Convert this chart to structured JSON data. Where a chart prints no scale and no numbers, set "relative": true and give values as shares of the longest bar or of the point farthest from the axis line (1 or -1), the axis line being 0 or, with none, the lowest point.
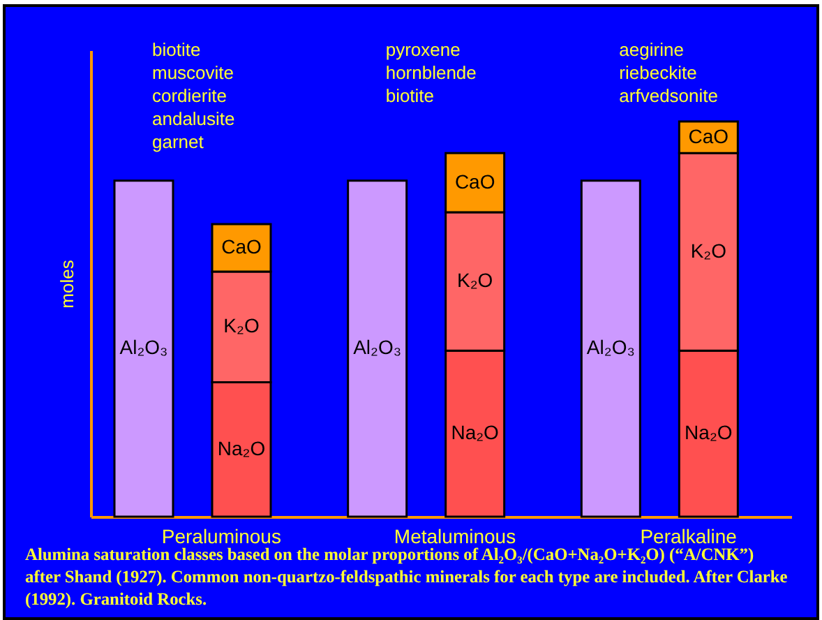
{
  "chart_data": {
    "type": "bar",
    "relative": true,
    "stacked": true,
    "legend": false,
    "ylabel": "moles",
    "categories": [
      null,
      null,
      null,
      null,
      null,
      null
    ],
    "series": [
      {
        "name": "Al₂O₃",
        "color": "#cc99ff",
        "values": [
          0.85,
          null,
          0.85,
          null,
          0.85,
          null
        ]
      },
      {
        "name": "Na₂O",
        "color": "#ff5050",
        "values": [
          null,
          0.34,
          null,
          0.42,
          null,
          0.42
        ]
      },
      {
        "name": "K₂O",
        "color": "#ff6666",
        "values": [
          null,
          0.28,
          null,
          0.35,
          null,
          0.5
        ]
      },
      {
        "name": "CaO",
        "color": "#ff9900",
        "values": [
          null,
          0.12,
          null,
          0.15,
          null,
          0.08
        ]
      }
    ],
    "annotations": [
      "biotite\nmuscovite\ncordierite\nandalusite\ngarnet",
      "pyroxene\nhornblende\nbiotite",
      "aegirine\nriebeckite\narfvedsonite",
      "Peraluminous",
      "Metaluminous",
      "Peralkaline",
      "Alumina saturation classes based on the molar proportions of Al₂O₃/(CaO+Na₂O+K₂O) (“A/CNK”) after Shand (1927). Common non-quartzo-feldspathic minerals for each type are included. After Clarke (1992). Granitoid Rocks."
    ]
  }
}
